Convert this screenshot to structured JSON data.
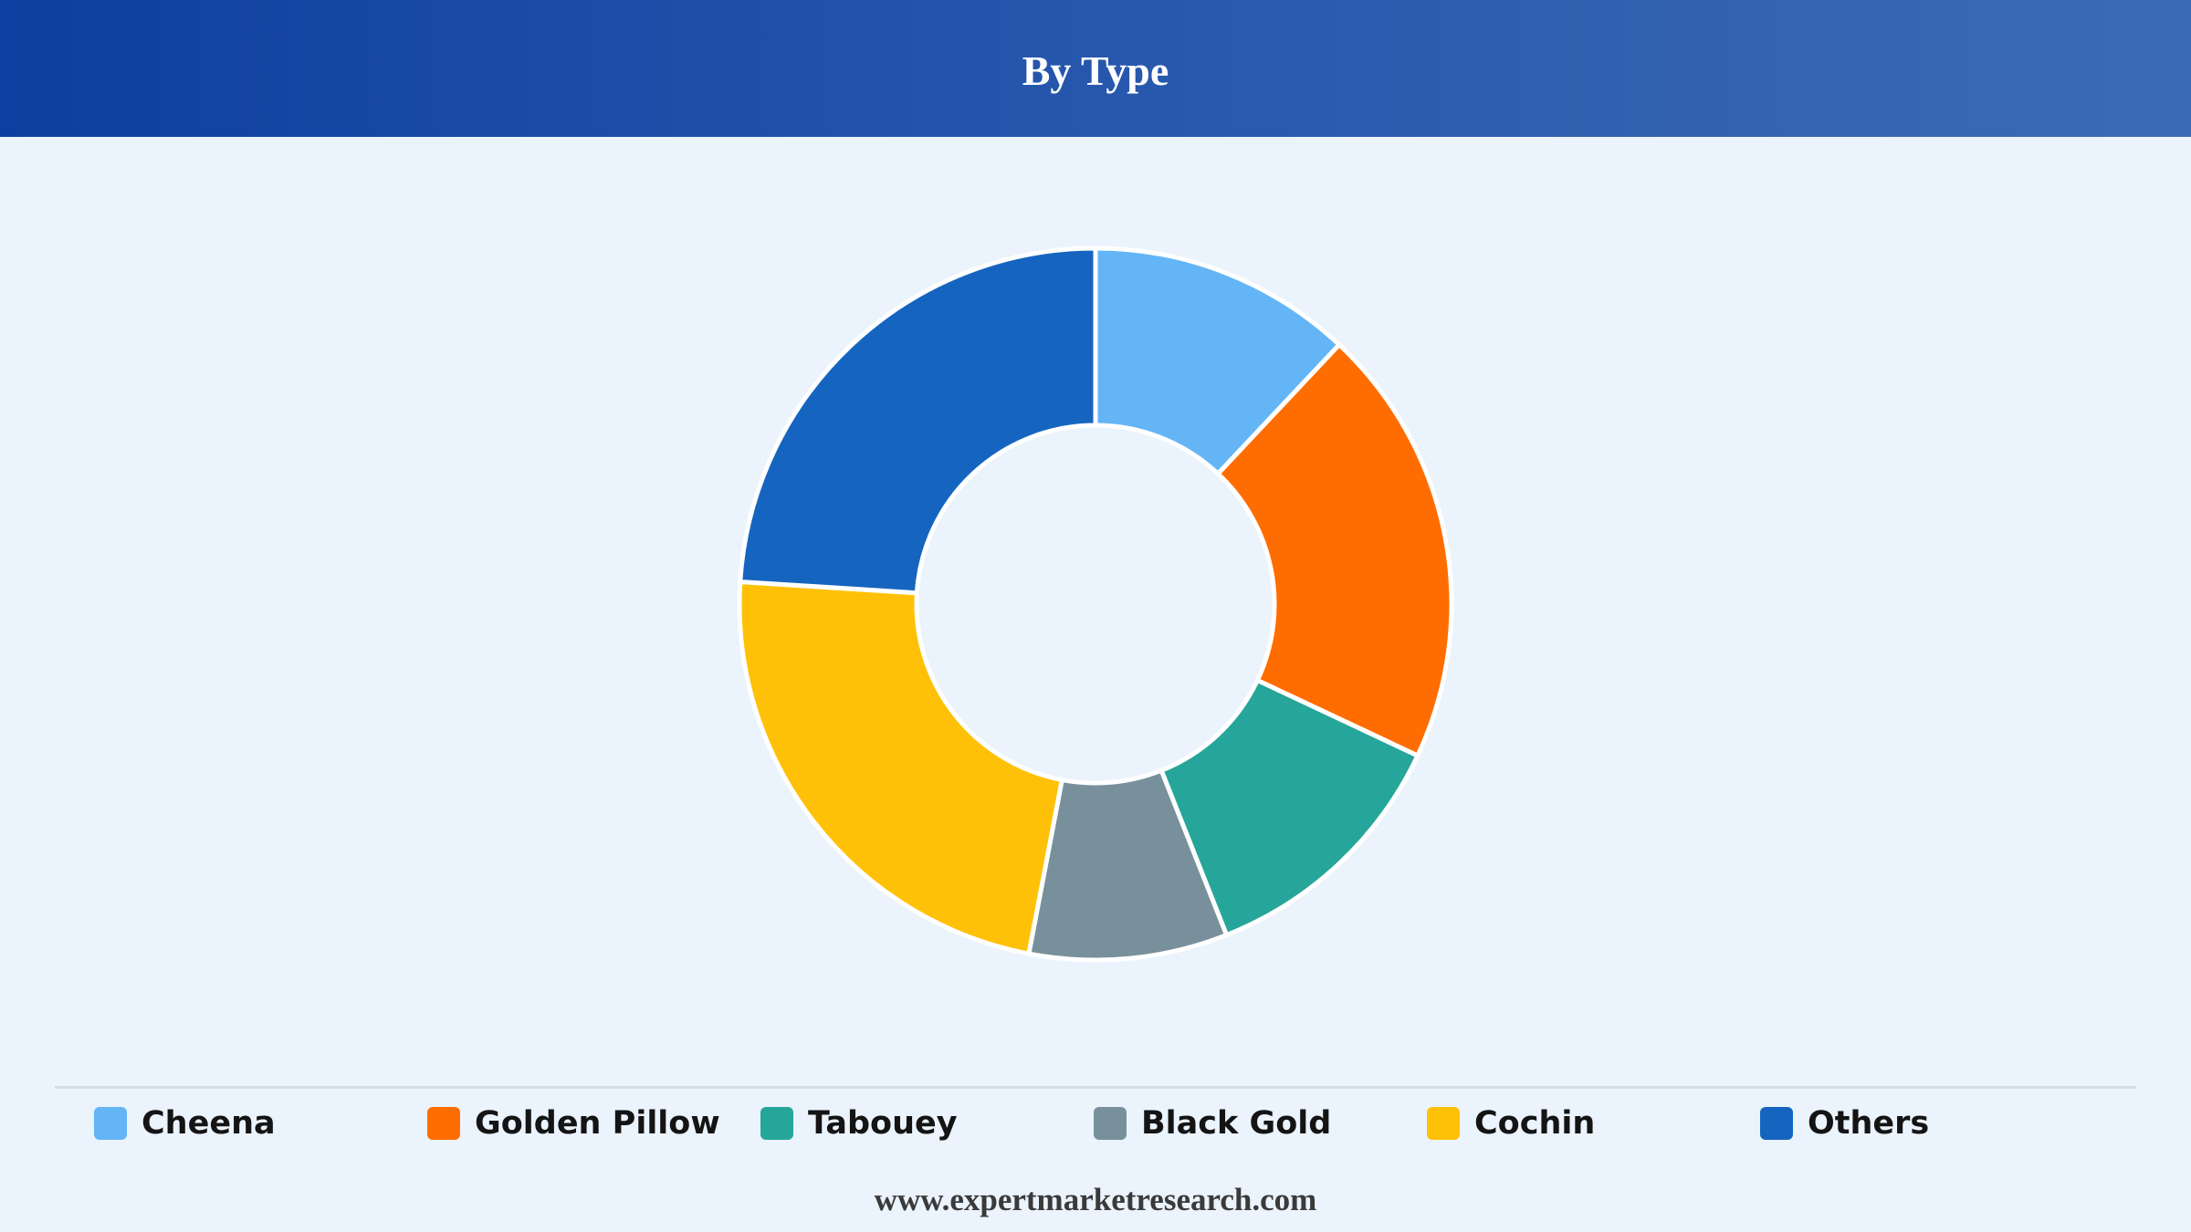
{
  "header": {
    "title": "By Type"
  },
  "footer": {
    "url": "www.expertmarketresearch.com"
  },
  "chart_data": {
    "type": "pie",
    "variant": "donut",
    "title": "By Type",
    "categories": [
      "Cheena",
      "Golden Pillow",
      "Tabouey",
      "Black Gold",
      "Cochin",
      "Others"
    ],
    "values": [
      12,
      20,
      12,
      9,
      23,
      24
    ],
    "colors": [
      "#64b5f6",
      "#ff6d00",
      "#26a69a",
      "#78909c",
      "#ffc107",
      "#1565c0"
    ],
    "legend_position": "bottom",
    "start_angle": "12 o'clock",
    "direction": "clockwise"
  }
}
